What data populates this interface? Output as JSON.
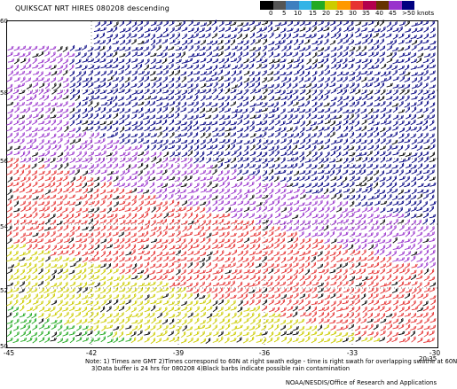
{
  "header": {
    "title": "QUIKSCAT NRT HIRES 080208 descending"
  },
  "scale": {
    "ticks": [
      "0",
      "5",
      "10",
      "15",
      "20",
      "25",
      "30",
      "35",
      "40",
      "45",
      ">50 knots"
    ],
    "colors": [
      "#000000",
      "#555555",
      "#3f7fbf",
      "#33b3e6",
      "#22aa22",
      "#cccc00",
      "#ff9900",
      "#e63333",
      "#b3004d",
      "#663300",
      "#9933cc",
      "#000080"
    ]
  },
  "axes": {
    "lat_labels": [
      "60",
      "58",
      "56",
      "54",
      "52",
      "50"
    ],
    "lon_labels": [
      "-45",
      "-42",
      "-39",
      "-36",
      "-33",
      "-30"
    ]
  },
  "wind_field": {
    "regions": [
      {
        "name": "northeast-core",
        "speed": ">50 knots",
        "color": "#000080"
      },
      {
        "name": "central-band",
        "speed": "45 knots",
        "color": "#9933cc"
      },
      {
        "name": "mid-south",
        "speed": "35 knots",
        "color": "#e63333"
      },
      {
        "name": "southwest",
        "speed": "25 knots",
        "color": "#cccc00"
      },
      {
        "name": "far-southwest",
        "speed": "20 knots",
        "color": "#22aa22"
      }
    ]
  },
  "footer": {
    "note_line1": "Note: 1) Times are GMT 2)Times correspond to 60N at right swath edge - time is right swath for overlapping swathe at 60N",
    "note_line2": "3)Data buffer is 24 hrs for 080208 4)Black barbs indicate possible rain contamination",
    "time": "20:35",
    "credit": "NOAA/NESDIS/Office of Research and Applications"
  }
}
